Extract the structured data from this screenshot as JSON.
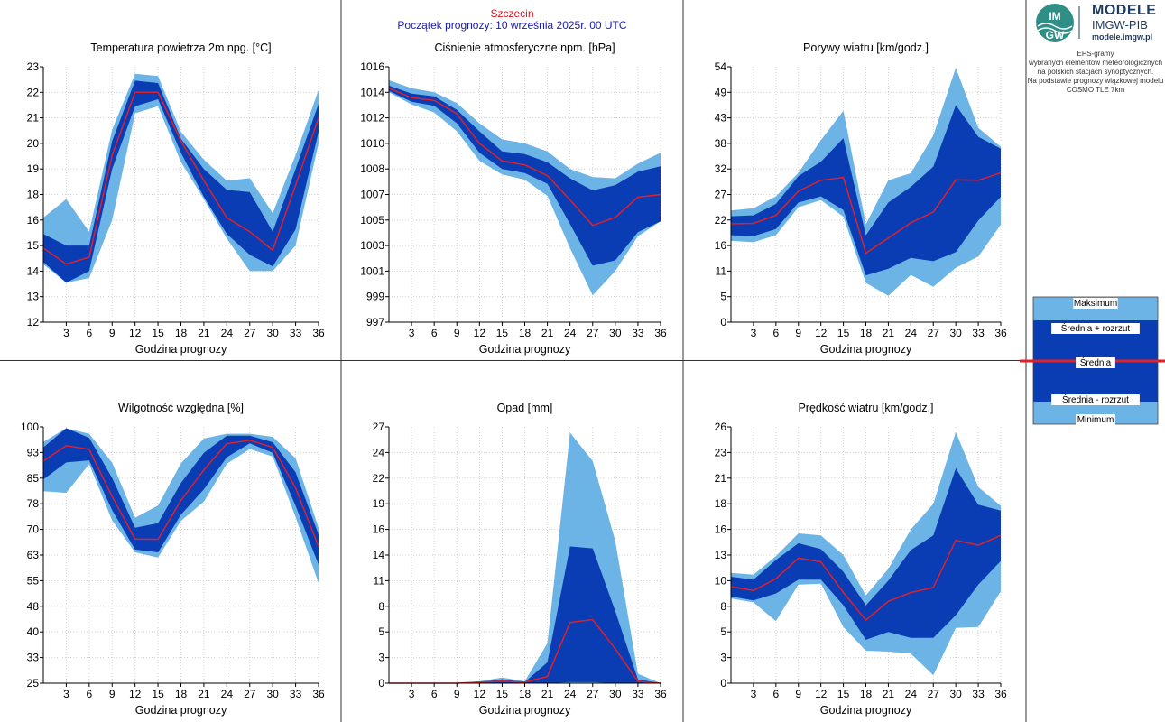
{
  "header": {
    "station": "Szczecin",
    "forecast_start": "Początek prognozy: 10 września 2025r. 00 UTC"
  },
  "logo": {
    "brand": "MODELE",
    "org": "IMGW-PIB",
    "url": "modele.imgw.pl",
    "mark_letters": "IMGW"
  },
  "info": {
    "lines": [
      "EPS-gramy",
      "wybranych elementów meteorologicznych",
      "na polskich stacjach  synoptycznych.",
      "",
      "Na podstawie prognozy wiązkowej modelu",
      "COSMO TLE 7km"
    ]
  },
  "legend": {
    "max": "Maksimum",
    "mean_plus": "Średnia + rozrzut",
    "mean": "Średnia",
    "mean_minus": "Średnia - rozrzut",
    "min": "Minimum"
  },
  "colors": {
    "outer_band": "#6cb4e6",
    "inner_band": "#0a3cb4",
    "mean_line": "#e0202a",
    "grid": "#c8c8c8",
    "separator": "#333333",
    "header_station": "#e0101a",
    "header_start": "#1a1ab4"
  },
  "chart_data": [
    {
      "id": "temperature",
      "type": "area",
      "title": "Temperatura powietrza 2m npg. [°C]",
      "xlabel": "Godzina prognozy",
      "x": [
        0,
        3,
        6,
        9,
        12,
        15,
        18,
        21,
        24,
        27,
        30,
        33,
        36
      ],
      "xticks": [
        3,
        6,
        9,
        12,
        15,
        18,
        21,
        24,
        27,
        30,
        33,
        36
      ],
      "yticks": [
        "12",
        "13",
        "14",
        "15",
        "16",
        "18",
        "19",
        "20",
        "21",
        "22",
        "23"
      ],
      "ylim": [
        12,
        23
      ],
      "series": [
        {
          "name": "Maksimum",
          "values": [
            16.5,
            17.3,
            15.9,
            20.3,
            22.7,
            22.6,
            20.2,
            19.0,
            18.1,
            18.2,
            16.7,
            19.2,
            22.0
          ]
        },
        {
          "name": "Średnia + rozrzut",
          "values": [
            15.8,
            15.3,
            15.3,
            19.8,
            22.4,
            22.3,
            19.9,
            18.6,
            17.7,
            17.6,
            15.9,
            18.6,
            21.4
          ]
        },
        {
          "name": "Średnia",
          "values": [
            15.2,
            14.5,
            14.8,
            19.2,
            21.9,
            21.9,
            19.8,
            18.1,
            16.5,
            15.9,
            15.1,
            17.9,
            20.8
          ]
        },
        {
          "name": "Średnia - rozrzut",
          "values": [
            14.6,
            13.7,
            14.2,
            18.6,
            21.3,
            21.6,
            19.3,
            17.4,
            15.8,
            14.9,
            14.4,
            16.0,
            20.2
          ]
        },
        {
          "name": "Minimum",
          "values": [
            14.5,
            13.7,
            13.9,
            16.4,
            21.0,
            21.3,
            18.9,
            17.3,
            15.6,
            14.2,
            14.2,
            15.3,
            19.7
          ]
        }
      ]
    },
    {
      "id": "pressure",
      "type": "area",
      "title": "Ciśnienie atmosferyczne npm. [hPa]",
      "xlabel": "Godzina prognozy",
      "x": [
        0,
        3,
        6,
        9,
        12,
        15,
        18,
        21,
        24,
        27,
        30,
        33,
        36
      ],
      "xticks": [
        3,
        6,
        9,
        12,
        15,
        18,
        21,
        24,
        27,
        30,
        33,
        36
      ],
      "yticks": [
        "997",
        "999",
        "1001",
        "1003",
        "1005",
        "1007",
        "1008",
        "1010",
        "1012",
        "1014",
        "1016"
      ],
      "ylim": [
        997,
        1016
      ],
      "series": [
        {
          "name": "Maksimum",
          "values": [
            1015.0,
            1014.4,
            1014.1,
            1013.3,
            1011.8,
            1010.6,
            1010.3,
            1009.7,
            1008.4,
            1007.8,
            1007.7,
            1008.8,
            1009.6
          ]
        },
        {
          "name": "Średnia + rozrzut",
          "values": [
            1014.6,
            1014.0,
            1013.8,
            1012.8,
            1011.2,
            1009.7,
            1009.5,
            1008.9,
            1007.7,
            1006.8,
            1007.2,
            1008.2,
            1008.6
          ]
        },
        {
          "name": "Średnia",
          "values": [
            1014.4,
            1013.7,
            1013.5,
            1012.5,
            1010.3,
            1009.0,
            1008.7,
            1007.9,
            1006.1,
            1004.2,
            1004.8,
            1006.3,
            1006.5
          ]
        },
        {
          "name": "Średnia - rozrzut",
          "values": [
            1014.2,
            1013.4,
            1013.1,
            1011.8,
            1009.6,
            1008.4,
            1008.1,
            1007.3,
            1004.3,
            1001.2,
            1001.6,
            1003.7,
            1004.5
          ]
        },
        {
          "name": "Minimum",
          "values": [
            1014.1,
            1013.2,
            1012.6,
            1011.2,
            1009.0,
            1008.0,
            1007.6,
            1006.4,
            1002.5,
            999.0,
            1000.8,
            1003.4,
            1004.5
          ]
        }
      ]
    },
    {
      "id": "gusts",
      "type": "area",
      "title": "Porywy wiatru [km/godz.]",
      "xlabel": "Godzina prognozy",
      "x": [
        0,
        3,
        6,
        9,
        12,
        15,
        18,
        21,
        24,
        27,
        30,
        33,
        36
      ],
      "xticks": [
        3,
        6,
        9,
        12,
        15,
        18,
        21,
        24,
        27,
        30,
        33,
        36
      ],
      "yticks": [
        "0",
        "5",
        "11",
        "16",
        "22",
        "27",
        "32",
        "38",
        "43",
        "49",
        "54"
      ],
      "ylim": [
        0,
        54
      ],
      "series": [
        {
          "name": "Maksimum",
          "values": [
            23.6,
            24.1,
            26.6,
            31.6,
            38.5,
            44.7,
            20.7,
            30.0,
            31.5,
            39.5,
            53.8,
            41.1,
            37.1
          ]
        },
        {
          "name": "Średnia + rozrzut",
          "values": [
            22.4,
            22.6,
            25.0,
            30.9,
            33.9,
            38.9,
            18.4,
            25.3,
            28.6,
            32.9,
            45.9,
            39.2,
            36.7
          ]
        },
        {
          "name": "Średnia",
          "values": [
            20.8,
            20.9,
            22.6,
            27.7,
            30.0,
            30.6,
            14.6,
            17.8,
            21.0,
            23.3,
            30.1,
            30.0,
            31.6
          ]
        },
        {
          "name": "Średnia - rozrzut",
          "values": [
            18.4,
            18.2,
            19.7,
            25.3,
            26.6,
            23.7,
            9.9,
            11.3,
            13.6,
            12.9,
            14.8,
            21.5,
            26.5
          ]
        },
        {
          "name": "Minimum",
          "values": [
            17.2,
            16.9,
            18.4,
            24.3,
            25.8,
            22.3,
            8.3,
            5.6,
            10.0,
            7.5,
            11.5,
            13.9,
            20.6
          ]
        }
      ]
    },
    {
      "id": "humidity",
      "type": "area",
      "title": "Wilgotność względna [%]",
      "xlabel": "Godzina prognozy",
      "x": [
        0,
        3,
        6,
        9,
        12,
        15,
        18,
        21,
        24,
        27,
        30,
        33,
        36
      ],
      "xticks": [
        3,
        6,
        9,
        12,
        15,
        18,
        21,
        24,
        27,
        30,
        33,
        36
      ],
      "yticks": [
        "25",
        "33",
        "40",
        "48",
        "55",
        "63",
        "70",
        "78",
        "85",
        "93",
        "100"
      ],
      "ylim": [
        25,
        100
      ],
      "series": [
        {
          "name": "Maksimum",
          "values": [
            95.6,
            99.6,
            98.0,
            89.5,
            73.4,
            77.0,
            89.3,
            96.6,
            98.0,
            98.0,
            97.1,
            90.8,
            70.5
          ]
        },
        {
          "name": "Średnia + rozrzut",
          "values": [
            94.0,
            99.6,
            96.8,
            85.0,
            70.5,
            71.8,
            83.6,
            92.4,
            97.4,
            97.4,
            95.5,
            86.7,
            68.5
          ]
        },
        {
          "name": "Średnia",
          "values": [
            90.0,
            94.5,
            93.4,
            79.6,
            67.2,
            67.1,
            78.5,
            87.4,
            95.1,
            96.1,
            94.0,
            82.1,
            65.0
          ]
        },
        {
          "name": "Średnia - rozrzut",
          "values": [
            84.6,
            89.6,
            90.2,
            75.6,
            64.1,
            63.3,
            74.3,
            81.7,
            91.1,
            95.2,
            92.4,
            76.9,
            59.7
          ]
        },
        {
          "name": "Minimum",
          "values": [
            81.2,
            80.7,
            89.1,
            72.6,
            63.3,
            61.8,
            72.5,
            78.1,
            89.2,
            93.5,
            91.3,
            73.6,
            54.3
          ]
        }
      ]
    },
    {
      "id": "precipitation",
      "type": "area",
      "title": "Opad [mm]",
      "xlabel": "Godzina prognozy",
      "x": [
        0,
        3,
        6,
        9,
        12,
        15,
        18,
        21,
        24,
        27,
        30,
        33,
        36
      ],
      "xticks": [
        3,
        6,
        9,
        12,
        15,
        18,
        21,
        24,
        27,
        30,
        33,
        36
      ],
      "yticks": [
        "0",
        "3",
        "5",
        "8",
        "11",
        "14",
        "16",
        "19",
        "22",
        "24",
        "27"
      ],
      "ylim": [
        0,
        27
      ],
      "series": [
        {
          "name": "Maksimum",
          "values": [
            0.0,
            0.0,
            0.0,
            0.0,
            0.2,
            0.6,
            0.2,
            4.2,
            26.4,
            23.4,
            15.0,
            1.0,
            0.0
          ]
        },
        {
          "name": "Średnia + rozrzut",
          "values": [
            0.0,
            0.0,
            0.0,
            0.0,
            0.1,
            0.4,
            0.1,
            2.2,
            14.4,
            14.2,
            7.6,
            0.4,
            0.0
          ]
        },
        {
          "name": "Średnia",
          "values": [
            0.0,
            0.0,
            0.0,
            0.0,
            0.1,
            0.2,
            0.1,
            0.7,
            6.4,
            6.7,
            3.6,
            0.2,
            0.0
          ]
        },
        {
          "name": "Średnia - rozrzut",
          "values": [
            0.0,
            0.0,
            0.0,
            0.0,
            0.0,
            0.0,
            0.0,
            0.0,
            0.1,
            0.1,
            0.0,
            0.0,
            0.0
          ]
        },
        {
          "name": "Minimum",
          "values": [
            0.0,
            0.0,
            0.0,
            0.0,
            0.0,
            0.0,
            0.0,
            0.0,
            0.0,
            0.0,
            0.0,
            0.0,
            0.0
          ]
        }
      ]
    },
    {
      "id": "wind",
      "type": "area",
      "title": "Prędkość wiatru [km/godz.]",
      "xlabel": "Godzina prognozy",
      "x": [
        0,
        3,
        6,
        9,
        12,
        15,
        18,
        21,
        24,
        27,
        30,
        33,
        36
      ],
      "xticks": [
        3,
        6,
        9,
        12,
        15,
        18,
        21,
        24,
        27,
        30,
        33,
        36
      ],
      "yticks": [
        "0",
        "3",
        "5",
        "8",
        "10",
        "13",
        "16",
        "18",
        "21",
        "23",
        "26"
      ],
      "ylim": [
        0,
        26
      ],
      "series": [
        {
          "name": "Maksimum",
          "values": [
            11.2,
            11.0,
            12.9,
            15.2,
            15.0,
            13.0,
            8.9,
            11.6,
            15.6,
            18.2,
            25.5,
            19.9,
            18.0
          ]
        },
        {
          "name": "Średnia + rozrzut",
          "values": [
            10.8,
            10.5,
            12.5,
            14.2,
            13.6,
            11.3,
            7.9,
            10.4,
            13.5,
            15.0,
            21.8,
            18.1,
            17.5
          ]
        },
        {
          "name": "Średnia",
          "values": [
            9.8,
            9.4,
            10.6,
            12.7,
            12.3,
            9.2,
            6.4,
            8.3,
            9.2,
            9.7,
            14.5,
            14.0,
            15.0
          ]
        },
        {
          "name": "Średnia - rozrzut",
          "values": [
            8.8,
            8.4,
            9.1,
            10.5,
            10.5,
            7.9,
            4.4,
            5.2,
            4.6,
            4.6,
            6.9,
            10.0,
            12.4
          ]
        },
        {
          "name": "Minimum",
          "values": [
            8.6,
            8.2,
            6.3,
            10.0,
            10.1,
            5.7,
            3.3,
            3.2,
            3.0,
            0.8,
            5.6,
            5.7,
            9.3
          ]
        }
      ]
    }
  ]
}
